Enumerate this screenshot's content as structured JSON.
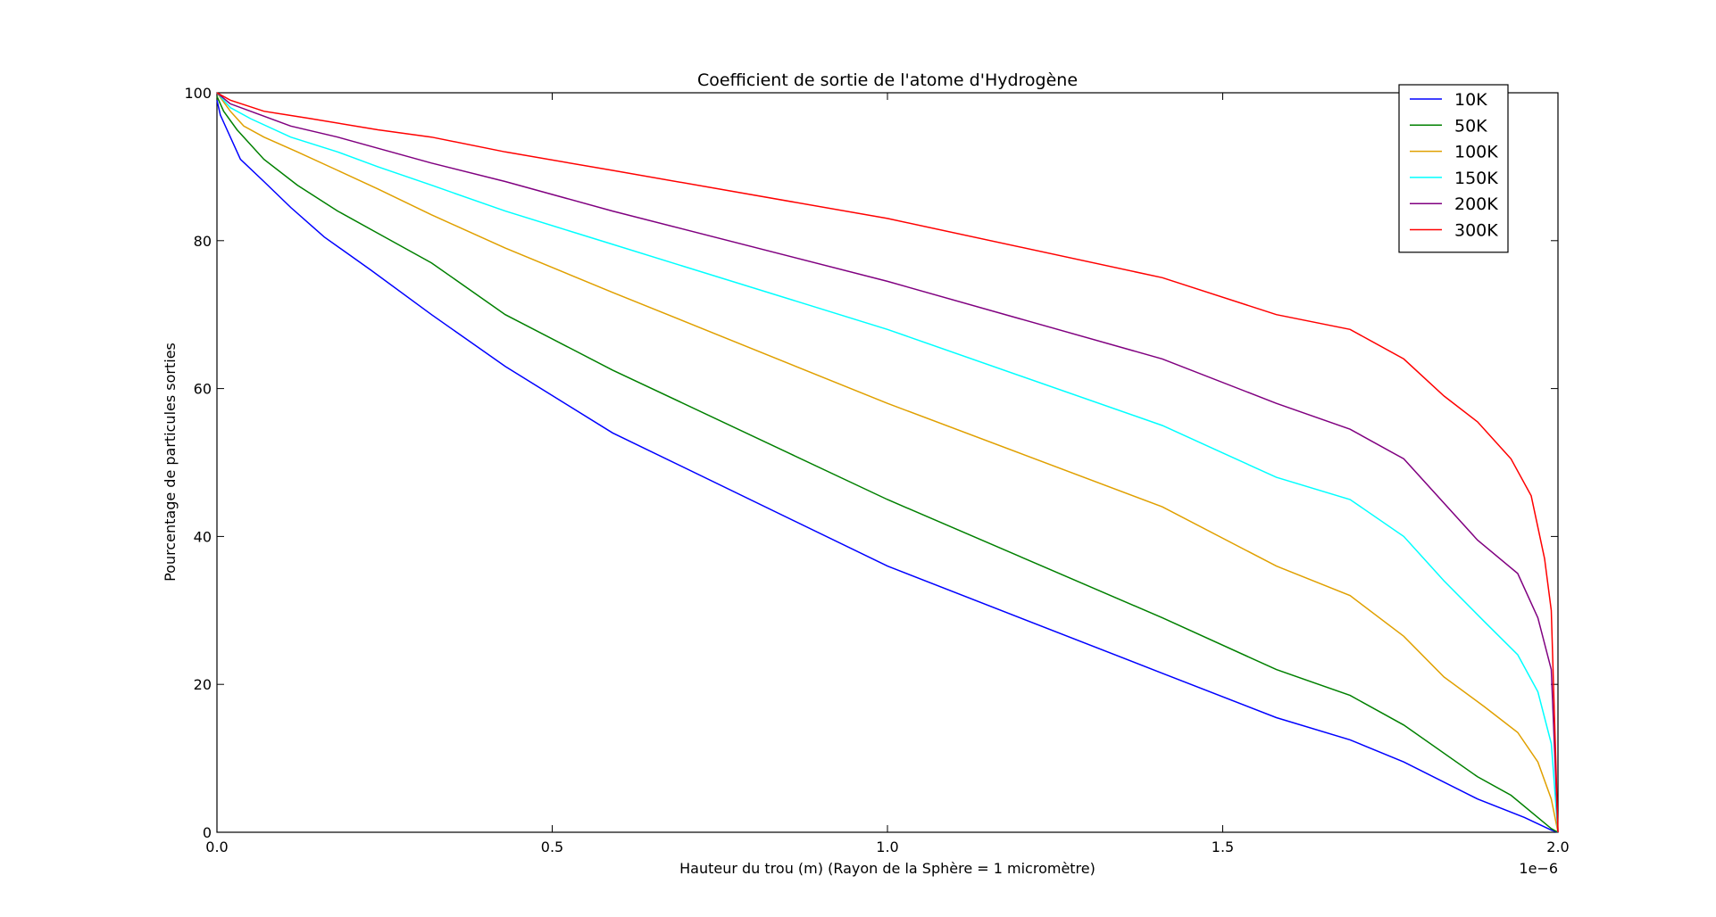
{
  "chart_data": {
    "type": "line",
    "title": "Coefficient de sortie de l'atome d'Hydrogène",
    "xlabel": "Hauteur du trou (m) (Rayon de la Sphère = 1 micromètre)",
    "ylabel": "Pourcentage de particules sorties",
    "x_offset_label": "1e−6",
    "xlim": [
      0.0,
      2.0
    ],
    "ylim": [
      0,
      100
    ],
    "x_scale_factor": 1e-06,
    "xticks": [
      0.0,
      0.5,
      1.0,
      1.5,
      2.0
    ],
    "xtick_labels": [
      "0.0",
      "0.5",
      "1.0",
      "1.5",
      "2.0"
    ],
    "yticks": [
      0,
      20,
      40,
      60,
      80,
      100
    ],
    "ytick_labels": [
      "0",
      "20",
      "40",
      "60",
      "80",
      "100"
    ],
    "grid": false,
    "legend_position": "top-right",
    "series": [
      {
        "name": "10K",
        "color": "#0000ff",
        "points": [
          [
            0.0,
            99
          ],
          [
            0.005,
            97
          ],
          [
            0.015,
            95
          ],
          [
            0.035,
            91
          ],
          [
            0.07,
            88
          ],
          [
            0.11,
            84.5
          ],
          [
            0.16,
            80.5
          ],
          [
            0.23,
            76
          ],
          [
            0.32,
            70
          ],
          [
            0.43,
            63
          ],
          [
            0.59,
            54
          ],
          [
            1.0,
            36
          ],
          [
            1.41,
            21.5
          ],
          [
            1.58,
            15.5
          ],
          [
            1.69,
            12.5
          ],
          [
            1.77,
            9.5
          ],
          [
            1.88,
            4.5
          ],
          [
            1.95,
            2
          ],
          [
            1.99,
            0.3
          ],
          [
            2.0,
            0
          ]
        ]
      },
      {
        "name": "50K",
        "color": "#008000",
        "points": [
          [
            0.0,
            99.5
          ],
          [
            0.01,
            97.5
          ],
          [
            0.03,
            95
          ],
          [
            0.07,
            91
          ],
          [
            0.12,
            87.5
          ],
          [
            0.18,
            84
          ],
          [
            0.24,
            81
          ],
          [
            0.32,
            77
          ],
          [
            0.43,
            70
          ],
          [
            0.59,
            62.5
          ],
          [
            1.0,
            45
          ],
          [
            1.41,
            29
          ],
          [
            1.58,
            22
          ],
          [
            1.69,
            18.5
          ],
          [
            1.77,
            14.5
          ],
          [
            1.88,
            7.5
          ],
          [
            1.93,
            5
          ],
          [
            1.99,
            0.5
          ],
          [
            2.0,
            0
          ]
        ]
      },
      {
        "name": "100K",
        "color": "#e0a000",
        "points": [
          [
            0.0,
            100
          ],
          [
            0.02,
            97.5
          ],
          [
            0.04,
            95.5
          ],
          [
            0.07,
            94
          ],
          [
            0.12,
            92
          ],
          [
            0.18,
            89.5
          ],
          [
            0.24,
            87
          ],
          [
            0.32,
            83.5
          ],
          [
            0.43,
            79
          ],
          [
            0.59,
            73
          ],
          [
            1.0,
            58
          ],
          [
            1.41,
            44
          ],
          [
            1.58,
            36
          ],
          [
            1.69,
            32
          ],
          [
            1.77,
            26.5
          ],
          [
            1.83,
            21
          ],
          [
            1.89,
            17
          ],
          [
            1.94,
            13.5
          ],
          [
            1.97,
            9.5
          ],
          [
            1.99,
            4.5
          ],
          [
            2.0,
            0
          ]
        ]
      },
      {
        "name": "150K",
        "color": "#00ffff",
        "points": [
          [
            0.0,
            100
          ],
          [
            0.02,
            98
          ],
          [
            0.05,
            96.5
          ],
          [
            0.11,
            94
          ],
          [
            0.18,
            92
          ],
          [
            0.24,
            90
          ],
          [
            0.32,
            87.5
          ],
          [
            0.43,
            84
          ],
          [
            0.59,
            79.5
          ],
          [
            1.0,
            68
          ],
          [
            1.41,
            55
          ],
          [
            1.58,
            48
          ],
          [
            1.69,
            45
          ],
          [
            1.77,
            40
          ],
          [
            1.83,
            34
          ],
          [
            1.89,
            28.5
          ],
          [
            1.94,
            24
          ],
          [
            1.97,
            19
          ],
          [
            1.99,
            12
          ],
          [
            2.0,
            0
          ]
        ]
      },
      {
        "name": "200K",
        "color": "#800080",
        "points": [
          [
            0.0,
            100
          ],
          [
            0.02,
            98.5
          ],
          [
            0.05,
            97.5
          ],
          [
            0.11,
            95.5
          ],
          [
            0.18,
            94
          ],
          [
            0.24,
            92.5
          ],
          [
            0.32,
            90.5
          ],
          [
            0.43,
            88
          ],
          [
            0.59,
            84
          ],
          [
            1.0,
            74.5
          ],
          [
            1.41,
            64
          ],
          [
            1.58,
            58
          ],
          [
            1.69,
            54.5
          ],
          [
            1.77,
            50.5
          ],
          [
            1.88,
            39.5
          ],
          [
            1.94,
            35
          ],
          [
            1.97,
            29
          ],
          [
            1.99,
            22
          ],
          [
            2.0,
            0
          ]
        ]
      },
      {
        "name": "300K",
        "color": "#ff0000",
        "points": [
          [
            0.0,
            100
          ],
          [
            0.02,
            99
          ],
          [
            0.07,
            97.5
          ],
          [
            0.14,
            96.5
          ],
          [
            0.24,
            95
          ],
          [
            0.32,
            94
          ],
          [
            0.43,
            92
          ],
          [
            0.59,
            89.5
          ],
          [
            1.0,
            83
          ],
          [
            1.41,
            75
          ],
          [
            1.58,
            70
          ],
          [
            1.69,
            68
          ],
          [
            1.77,
            64
          ],
          [
            1.83,
            59
          ],
          [
            1.88,
            55.5
          ],
          [
            1.93,
            50.5
          ],
          [
            1.96,
            45.5
          ],
          [
            1.98,
            37
          ],
          [
            1.99,
            30
          ],
          [
            2.0,
            0
          ]
        ]
      }
    ]
  }
}
